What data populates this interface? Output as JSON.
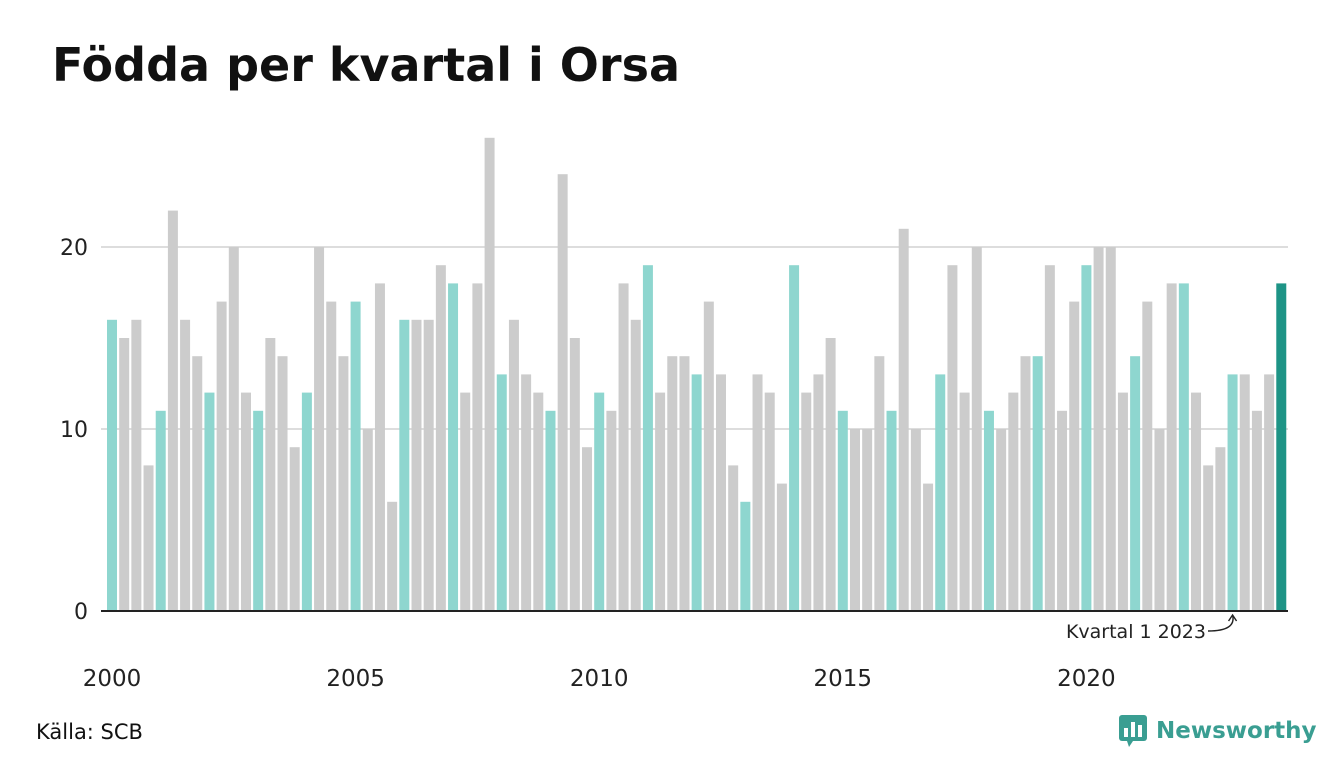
{
  "title": "Födda per kvartal i Orsa",
  "source": "Källa: SCB",
  "brand": {
    "name": "Newsworthy",
    "icon": "newsworthy-logo-icon"
  },
  "colors": {
    "bar_default": "#cccccc",
    "bar_q1": "#8ed6cf",
    "bar_latest": "#1e9486",
    "grid": "#dddddd",
    "axis": "#222222",
    "brand": "#3a9e92"
  },
  "chart_data": {
    "type": "bar",
    "title": "Födda per kvartal i Orsa",
    "xlabel": "",
    "ylabel": "",
    "ylim": [
      0,
      26
    ],
    "yticks": [
      0,
      10,
      20
    ],
    "xtick_labels": [
      "2000",
      "2005",
      "2010",
      "2015",
      "2020"
    ],
    "grid": true,
    "start_year": 2000,
    "annotation": {
      "text": "Kvartal 1 2023",
      "year": 2023,
      "quarter": 1
    },
    "categories": [
      "2000 Q1",
      "2000 Q2",
      "2000 Q3",
      "2000 Q4",
      "2001 Q1",
      "2001 Q2",
      "2001 Q3",
      "2001 Q4",
      "2002 Q1",
      "2002 Q2",
      "2002 Q3",
      "2002 Q4",
      "2003 Q1",
      "2003 Q2",
      "2003 Q3",
      "2003 Q4",
      "2004 Q1",
      "2004 Q2",
      "2004 Q3",
      "2004 Q4",
      "2005 Q1",
      "2005 Q2",
      "2005 Q3",
      "2005 Q4",
      "2006 Q1",
      "2006 Q2",
      "2006 Q3",
      "2006 Q4",
      "2007 Q1",
      "2007 Q2",
      "2007 Q3",
      "2007 Q4",
      "2008 Q1",
      "2008 Q2",
      "2008 Q3",
      "2008 Q4",
      "2009 Q1",
      "2009 Q2",
      "2009 Q3",
      "2009 Q4",
      "2010 Q1",
      "2010 Q2",
      "2010 Q3",
      "2010 Q4",
      "2011 Q1",
      "2011 Q2",
      "2011 Q3",
      "2011 Q4",
      "2012 Q1",
      "2012 Q2",
      "2012 Q3",
      "2012 Q4",
      "2013 Q1",
      "2013 Q2",
      "2013 Q3",
      "2013 Q4",
      "2014 Q1",
      "2014 Q2",
      "2014 Q3",
      "2014 Q4",
      "2015 Q1",
      "2015 Q2",
      "2015 Q3",
      "2015 Q4",
      "2016 Q1",
      "2016 Q2",
      "2016 Q3",
      "2016 Q4",
      "2017 Q1",
      "2017 Q2",
      "2017 Q3",
      "2017 Q4",
      "2018 Q1",
      "2018 Q2",
      "2018 Q3",
      "2018 Q4",
      "2019 Q1",
      "2019 Q2",
      "2019 Q3",
      "2019 Q4",
      "2020 Q1",
      "2020 Q2",
      "2020 Q3",
      "2020 Q4",
      "2021 Q1",
      "2021 Q2",
      "2021 Q3",
      "2021 Q4",
      "2022 Q1",
      "2022 Q2",
      "2022 Q3",
      "2022 Q4",
      "2023 Q1",
      "2023 Q2",
      "2023 Q3",
      "2023 Q4",
      "2024 Q1"
    ],
    "values": [
      16,
      15,
      16,
      8,
      11,
      22,
      16,
      14,
      12,
      17,
      20,
      12,
      11,
      15,
      14,
      9,
      12,
      20,
      17,
      14,
      17,
      10,
      18,
      6,
      16,
      16,
      16,
      19,
      18,
      12,
      18,
      26,
      13,
      16,
      13,
      12,
      11,
      24,
      15,
      9,
      12,
      11,
      18,
      16,
      19,
      12,
      14,
      14,
      13,
      17,
      13,
      8,
      6,
      13,
      12,
      7,
      19,
      12,
      13,
      15,
      11,
      10,
      10,
      14,
      11,
      21,
      10,
      7,
      13,
      19,
      12,
      20,
      11,
      10,
      12,
      14,
      14,
      19,
      11,
      17,
      19,
      20,
      20,
      12,
      14,
      17,
      10,
      18,
      18,
      12,
      8,
      9,
      13,
      13,
      11,
      13,
      18
    ]
  }
}
